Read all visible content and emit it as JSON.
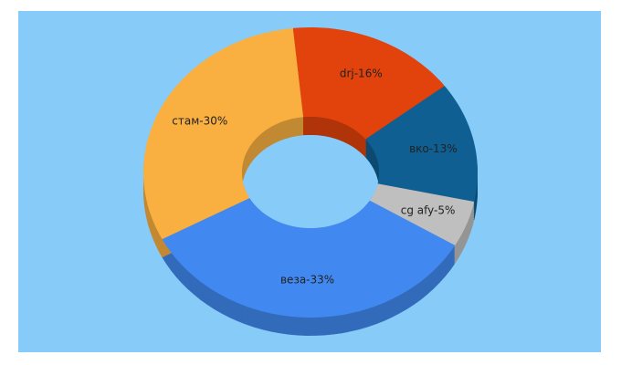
{
  "chart_data": {
    "type": "donut3d",
    "values": [
      16,
      13,
      5,
      33,
      30
    ],
    "value_labels": [
      "drj-16%",
      "вко-13%",
      "cg afy-5%",
      "веза-33%",
      "стам-30%"
    ],
    "colors": [
      "#e2430c",
      "#0f5f92",
      "#bfbfbf",
      "#4189f0",
      "#f9b041"
    ]
  }
}
